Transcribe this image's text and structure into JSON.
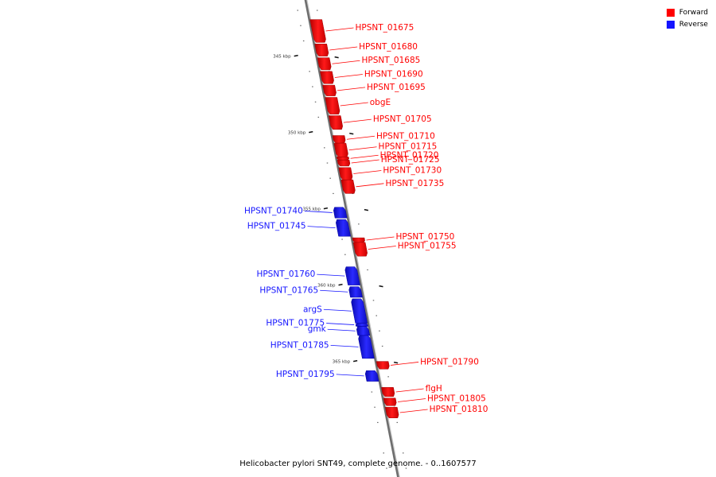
{
  "chart_data": {
    "type": "genome_map",
    "title": "Helicobacter pylori SNT49, complete genome. - 0..1607577",
    "legend": [
      {
        "label": "Forward",
        "color": "#ff0000"
      },
      {
        "label": "Reverse",
        "color": "#1414ff"
      }
    ],
    "ticks": [
      {
        "label": "345 kbp",
        "kbp": 345
      },
      {
        "label": "350 kbp",
        "kbp": 350
      },
      {
        "label": "355 kbp",
        "kbp": 355
      },
      {
        "label": "360 kbp",
        "kbp": 360
      },
      {
        "label": "365 kbp",
        "kbp": 365
      }
    ],
    "genes": [
      {
        "name": "HPSNT_01675",
        "strand": "forward",
        "start": 342.6,
        "end": 344.1
      },
      {
        "name": "HPSNT_01680",
        "strand": "forward",
        "start": 344.2,
        "end": 345.0
      },
      {
        "name": "HPSNT_01685",
        "strand": "forward",
        "start": 345.1,
        "end": 345.9
      },
      {
        "name": "HPSNT_01690",
        "strand": "forward",
        "start": 346.0,
        "end": 346.8
      },
      {
        "name": "HPSNT_01695",
        "strand": "forward",
        "start": 346.9,
        "end": 347.6
      },
      {
        "name": "obgE",
        "strand": "forward",
        "start": 347.7,
        "end": 348.8
      },
      {
        "name": "HPSNT_01705",
        "strand": "forward",
        "start": 348.9,
        "end": 349.8
      },
      {
        "name": "HPSNT_01710",
        "strand": "forward",
        "start": 350.2,
        "end": 350.7
      },
      {
        "name": "HPSNT_01715",
        "strand": "forward",
        "start": 350.7,
        "end": 351.6
      },
      {
        "name": "HPSNT_01720",
        "strand": "forward",
        "start": 351.6,
        "end": 351.8
      },
      {
        "name": "HPSNT_01725",
        "strand": "forward",
        "start": 351.8,
        "end": 352.2
      },
      {
        "name": "HPSNT_01730",
        "strand": "forward",
        "start": 352.3,
        "end": 353.1
      },
      {
        "name": "HPSNT_01735",
        "strand": "forward",
        "start": 353.1,
        "end": 354.0
      },
      {
        "name": "HPSNT_01740",
        "strand": "reverse",
        "start": 354.9,
        "end": 355.6
      },
      {
        "name": "HPSNT_01745",
        "strand": "reverse",
        "start": 355.7,
        "end": 356.8
      },
      {
        "name": "HPSNT_01750",
        "strand": "forward",
        "start": 356.9,
        "end": 357.2
      },
      {
        "name": "HPSNT_01755",
        "strand": "forward",
        "start": 357.2,
        "end": 358.1
      },
      {
        "name": "HPSNT_01760",
        "strand": "reverse",
        "start": 358.8,
        "end": 360.0
      },
      {
        "name": "HPSNT_01765",
        "strand": "reverse",
        "start": 360.1,
        "end": 360.8
      },
      {
        "name": "argS",
        "strand": "reverse",
        "start": 360.9,
        "end": 362.5
      },
      {
        "name": "HPSNT_01775",
        "strand": "reverse",
        "start": 362.5,
        "end": 362.7
      },
      {
        "name": "gmk",
        "strand": "reverse",
        "start": 362.7,
        "end": 363.3
      },
      {
        "name": "HPSNT_01785",
        "strand": "reverse",
        "start": 363.3,
        "end": 364.8
      },
      {
        "name": "HPSNT_01790",
        "strand": "forward",
        "start": 365.0,
        "end": 365.5
      },
      {
        "name": "HPSNT_01795",
        "strand": "reverse",
        "start": 365.6,
        "end": 366.3
      },
      {
        "name": "flgH",
        "strand": "forward",
        "start": 366.7,
        "end": 367.3
      },
      {
        "name": "HPSNT_01805",
        "strand": "forward",
        "start": 367.4,
        "end": 367.9
      },
      {
        "name": "HPSNT_01810",
        "strand": "forward",
        "start": 368.0,
        "end": 368.7
      }
    ]
  }
}
